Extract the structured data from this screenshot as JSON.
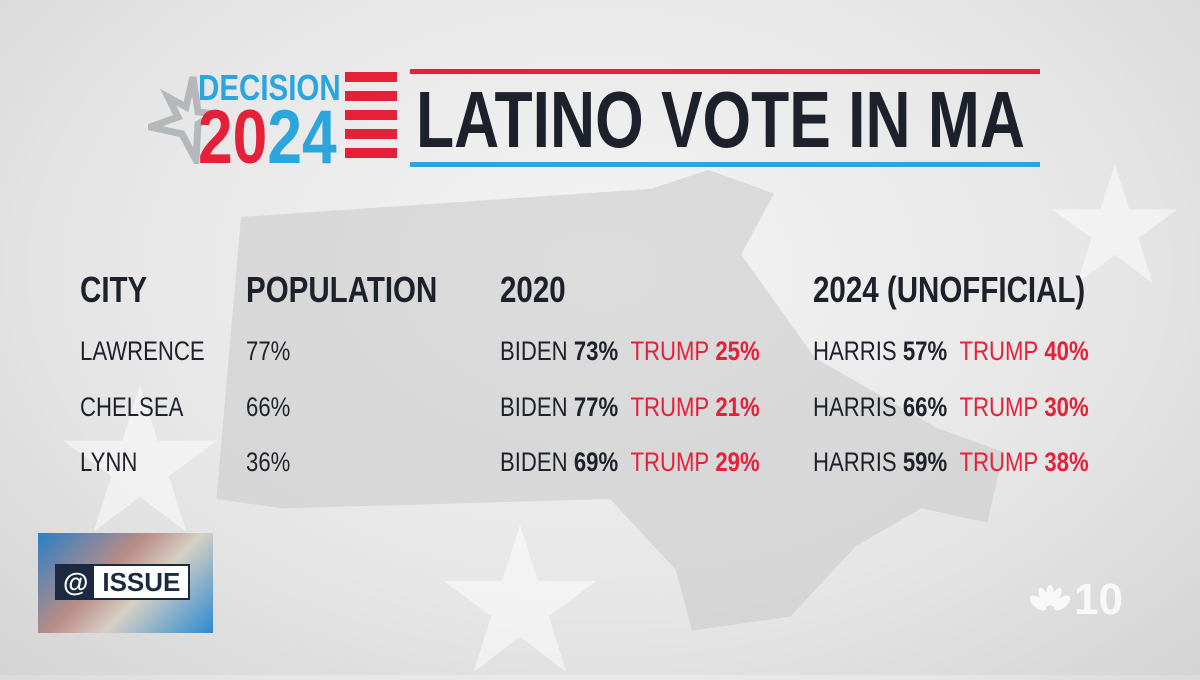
{
  "logo": {
    "line1": "DECISION",
    "year_a": "20",
    "year_b": "24"
  },
  "title": "LATINO VOTE IN MA",
  "headers": {
    "city": "CITY",
    "population": "POPULATION",
    "y2020": "2020",
    "y2024": "2024 (UNOFFICIAL)"
  },
  "rows": [
    {
      "city": "LAWRENCE",
      "population": "77%",
      "d2020_name": "BIDEN",
      "d2020": "73%",
      "r2020_name": "TRUMP",
      "r2020": "25%",
      "d2024_name": "HARRIS",
      "d2024": "57%",
      "r2024_name": "TRUMP",
      "r2024": "40%"
    },
    {
      "city": "CHELSEA",
      "population": "66%",
      "d2020_name": "BIDEN",
      "d2020": "77%",
      "r2020_name": "TRUMP",
      "r2020": "21%",
      "d2024_name": "HARRIS",
      "d2024": "66%",
      "r2024_name": "TRUMP",
      "r2024": "30%"
    },
    {
      "city": "LYNN",
      "population": "36%",
      "d2020_name": "BIDEN",
      "d2020": "69%",
      "r2020_name": "TRUMP",
      "r2020": "29%",
      "d2024_name": "HARRIS",
      "d2024": "59%",
      "r2024_name": "TRUMP",
      "r2024": "38%"
    }
  ],
  "show_badge": {
    "at": "@",
    "word": "ISSUE"
  },
  "station_bug": "10",
  "colors": {
    "red": "#e5213a",
    "blue": "#2aa6dc",
    "dark": "#1d212b"
  }
}
